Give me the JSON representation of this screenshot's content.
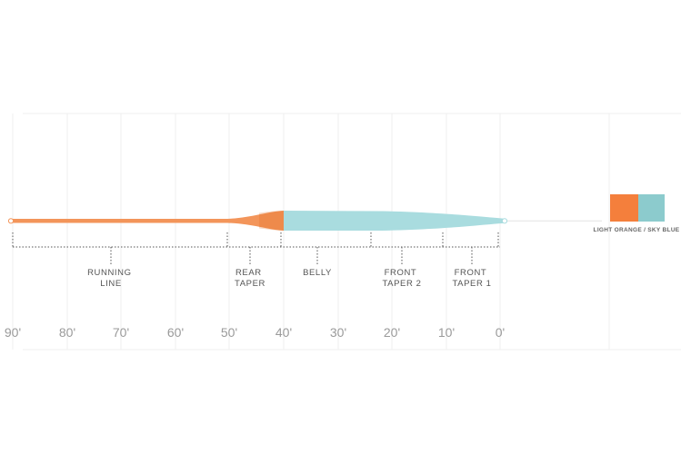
{
  "distance_axis": {
    "ticks": [
      "90'",
      "80'",
      "70'",
      "60'",
      "50'",
      "40'",
      "30'",
      "20'",
      "10'",
      "0'"
    ]
  },
  "segments": [
    {
      "lines": [
        "RUNNING",
        "LINE"
      ]
    },
    {
      "lines": [
        "REAR",
        "TAPER"
      ]
    },
    {
      "lines": [
        "BELLY"
      ]
    },
    {
      "lines": [
        "FRONT",
        "TAPER 2"
      ]
    },
    {
      "lines": [
        "FRONT",
        "TAPER 1"
      ]
    }
  ],
  "line_colors": {
    "running_line": "#f3955a",
    "head": "#a9dcdf"
  },
  "legend": {
    "swatches": [
      {
        "name": "light-orange",
        "color": "#f47f3c"
      },
      {
        "name": "sky-blue",
        "color": "#8ccbcd"
      }
    ],
    "label": "LIGHT ORANGE / SKY BLUE"
  }
}
